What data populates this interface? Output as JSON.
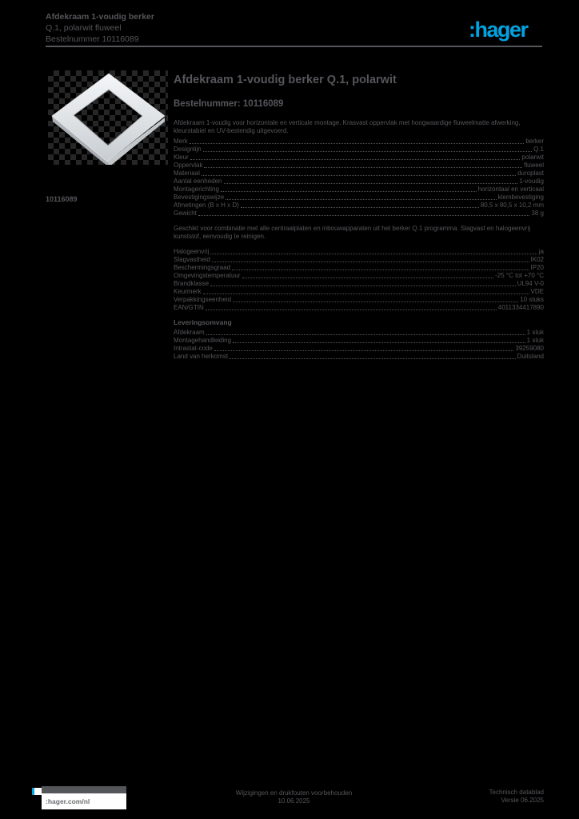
{
  "colors": {
    "background": "#000000",
    "text_gray": "#55565A",
    "hager_blue": "#00A3E0",
    "frame_silver": "#DDE1E4"
  },
  "header": {
    "line1": "Afdekraam 1-voudig berker",
    "line2": "Q.1, polarwit fluweel",
    "line3": "Bestelnummer 10116089",
    "logo_text": ":hager"
  },
  "product": {
    "article_number": "10116089"
  },
  "main": {
    "title": "Afdekraam 1-voudig berker Q.1, polarwit",
    "subtitle": "Bestelnummer: 10116089",
    "sections": [
      {
        "paragraph": "Afdekraam 1-voudig voor horizontale en verticale montage. Krasvast oppervlak met hoogwaardige fluweelmatte afwerking, kleurstabiel en UV-bestendig uitgevoerd."
      },
      {
        "rows": [
          [
            "Merk",
            "berker"
          ],
          [
            "Designlijn",
            "Q.1"
          ],
          [
            "Kleur",
            "polarwit"
          ],
          [
            "Oppervlak",
            "fluweel"
          ],
          [
            "Materiaal",
            "duroplast"
          ],
          [
            "Aantal eenheden",
            "1-voudig"
          ],
          [
            "Montagerichting",
            "horizontaal en verticaal"
          ],
          [
            "Bevestigingswijze",
            "klembevestiging"
          ],
          [
            "Afmetingen (B x H x D)",
            "80,5 x 80,5 x 10,2 mm"
          ],
          [
            "Gewicht",
            "38 g"
          ]
        ]
      },
      {
        "paragraph": "Geschikt voor combinatie met alle centraalplaten en inbouwapparaten uit het berker Q.1 programma. Slagvast en halogeenvrij kunststof, eenvoudig te reinigen."
      },
      {
        "rows": [
          [
            "Halogeenvrij",
            "ja"
          ],
          [
            "Slagvastheid",
            "IK02"
          ],
          [
            "Beschermingsgraad",
            "IP20"
          ],
          [
            "Omgevingstemperatuur",
            "-25 °C tot +70 °C"
          ],
          [
            "Brandklasse",
            "UL94 V-0"
          ],
          [
            "Keurmerk",
            "VDE"
          ],
          [
            "Verpakkingseenheid",
            "10 stuks"
          ],
          [
            "EAN/GTIN",
            "4011334417890"
          ]
        ]
      },
      {
        "heading": "Leveringsomvang"
      },
      {
        "rows": [
          [
            "Afdekraam",
            "1 stuk"
          ],
          [
            "Montagehandleiding",
            "1 stuk"
          ],
          [
            "Intrastat-code",
            "39259080"
          ],
          [
            "Land van herkomst",
            "Duitsland"
          ]
        ]
      }
    ]
  },
  "footer": {
    "website": ":hager.com/nl",
    "center_line1": "Wijzigingen en drukfouten voorbehouden",
    "center_line2": "10.06.2025",
    "right_line1": "Technisch datablad",
    "right_line2": "Versie 06.2025"
  }
}
